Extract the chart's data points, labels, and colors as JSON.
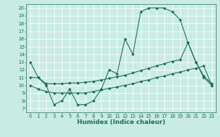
{
  "title": "",
  "xlabel": "Humidex (Indice chaleur)",
  "bg_color": "#c8ece4",
  "line_color": "#1a6b5a",
  "grid_color": "#ffffff",
  "xlim": [
    -0.5,
    23.5
  ],
  "ylim": [
    6.5,
    20.5
  ],
  "xticks": [
    0,
    1,
    2,
    3,
    4,
    5,
    6,
    7,
    8,
    9,
    10,
    11,
    12,
    13,
    14,
    15,
    16,
    17,
    18,
    19,
    20,
    21,
    22,
    23
  ],
  "yticks": [
    7,
    8,
    9,
    10,
    11,
    12,
    13,
    14,
    15,
    16,
    17,
    18,
    19,
    20
  ],
  "line1_x": [
    0,
    1,
    2,
    3,
    4,
    5,
    6,
    7,
    8,
    9,
    10,
    11,
    12,
    13,
    14,
    15,
    16,
    17,
    18,
    19,
    20,
    21,
    22,
    23
  ],
  "line1_y": [
    13,
    11,
    10,
    7.5,
    8,
    9.5,
    7.5,
    7.5,
    8,
    9.5,
    12,
    11.5,
    16,
    14,
    19.5,
    20,
    20,
    20,
    19.5,
    18.5,
    15.5,
    13,
    11,
    10
  ],
  "line2_x": [
    0,
    1,
    2,
    3,
    4,
    5,
    6,
    7,
    8,
    9,
    10,
    11,
    12,
    13,
    14,
    15,
    16,
    17,
    18,
    19,
    20,
    21,
    22,
    23
  ],
  "line2_y": [
    11,
    11,
    10.2,
    10.2,
    10.2,
    10.3,
    10.3,
    10.4,
    10.5,
    10.7,
    10.9,
    11.1,
    11.3,
    11.6,
    11.9,
    12.2,
    12.5,
    12.8,
    13.1,
    13.3,
    15.5,
    13.0,
    11.2,
    10.2
  ],
  "line3_x": [
    0,
    1,
    2,
    3,
    4,
    5,
    6,
    7,
    8,
    9,
    10,
    11,
    12,
    13,
    14,
    15,
    16,
    17,
    18,
    19,
    20,
    21,
    22,
    23
  ],
  "line3_y": [
    10,
    9.5,
    9.2,
    9.0,
    9.0,
    9.0,
    9.0,
    9.0,
    9.2,
    9.4,
    9.6,
    9.8,
    10.0,
    10.2,
    10.5,
    10.7,
    11.0,
    11.2,
    11.5,
    11.7,
    12.0,
    12.2,
    12.5,
    10.0
  ],
  "markersize": 2.0,
  "linewidth": 0.8,
  "xlabel_fontsize": 6.5,
  "tick_fontsize": 5.0
}
